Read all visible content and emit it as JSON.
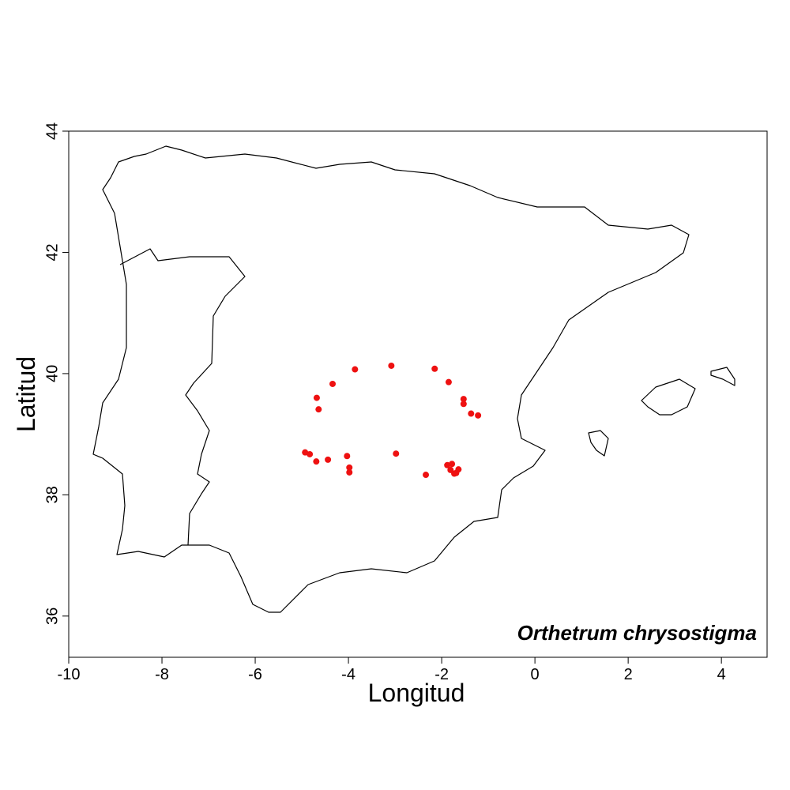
{
  "chart_data": {
    "type": "scatter",
    "annotation": "Orthetrum chrysostigma",
    "x_label": "Longitud",
    "y_label": "Latitud",
    "color": "#ee1111",
    "x": [
      -3.08,
      -3.86,
      -2.15,
      -1.85,
      -4.34,
      -4.68,
      -4.64,
      -1.53,
      -1.53,
      -1.37,
      -1.22,
      -4.93,
      -4.83,
      -4.69,
      -4.44,
      -4.03,
      -3.98,
      -3.98,
      -2.98,
      -2.34,
      -1.88,
      -1.78,
      -1.81,
      -1.73,
      -1.64,
      -1.69
    ],
    "y": [
      40.13,
      40.07,
      40.08,
      39.86,
      39.83,
      39.6,
      39.41,
      39.58,
      39.5,
      39.34,
      39.31,
      38.7,
      38.67,
      38.55,
      38.58,
      38.64,
      38.45,
      38.37,
      38.68,
      38.33,
      38.49,
      38.51,
      38.41,
      38.35,
      38.42,
      38.36
    ],
    "xlim": [
      -10,
      4.98
    ],
    "ylim": [
      35.32,
      44
    ],
    "xticks": [
      -10,
      -8,
      -6,
      -4,
      -2,
      0,
      2,
      4
    ],
    "yticks": [
      36,
      38,
      40,
      42,
      44
    ]
  }
}
